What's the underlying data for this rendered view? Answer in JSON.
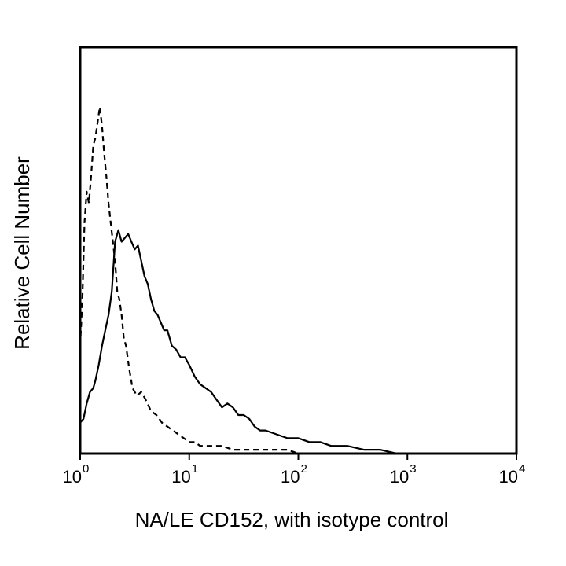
{
  "chart_data": {
    "type": "line",
    "title": "",
    "xlabel": "NA/LE CD152, with isotype control",
    "ylabel": "Relative Cell Number",
    "x_scale": "log10",
    "xlim_exponent": [
      0,
      4
    ],
    "ylim": [
      0,
      100
    ],
    "y_ticks_shown": false,
    "grid": false,
    "legend": "none",
    "x_ticks": [
      {
        "base": "10",
        "exp": "0",
        "value": 1
      },
      {
        "base": "10",
        "exp": "1",
        "value": 10
      },
      {
        "base": "10",
        "exp": "2",
        "value": 100
      },
      {
        "base": "10",
        "exp": "3",
        "value": 1000
      },
      {
        "base": "10",
        "exp": "4",
        "value": 10000
      }
    ],
    "series": [
      {
        "name": "NA/LE CD152",
        "style": "solid",
        "color": "#000000",
        "x_log": [
          0.0,
          0.03,
          0.06,
          0.09,
          0.12,
          0.14,
          0.17,
          0.2,
          0.23,
          0.26,
          0.29,
          0.32,
          0.35,
          0.38,
          0.41,
          0.44,
          0.47,
          0.5,
          0.53,
          0.56,
          0.59,
          0.62,
          0.65,
          0.68,
          0.71,
          0.74,
          0.77,
          0.8,
          0.84,
          0.88,
          0.92,
          0.96,
          1.0,
          1.05,
          1.1,
          1.15,
          1.2,
          1.25,
          1.3,
          1.35,
          1.4,
          1.45,
          1.5,
          1.55,
          1.6,
          1.65,
          1.7,
          1.8,
          1.9,
          2.0,
          2.1,
          2.2,
          2.3,
          2.45,
          2.6,
          2.75,
          2.9
        ],
        "y": [
          8,
          9,
          13,
          16,
          17,
          19,
          23,
          28,
          32,
          36,
          42,
          55,
          58,
          55,
          56,
          57,
          55,
          53,
          54,
          50,
          46,
          44,
          40,
          37,
          36,
          34,
          32,
          32,
          28,
          27,
          25,
          25,
          23,
          20,
          18,
          17,
          16,
          14,
          12,
          13,
          12,
          10,
          10,
          9,
          7,
          6,
          6,
          5,
          4,
          4,
          3,
          3,
          2,
          2,
          1,
          1,
          0
        ]
      },
      {
        "name": "Isotype control",
        "style": "dashed",
        "color": "#000000",
        "x_log": [
          0.0,
          0.02,
          0.04,
          0.06,
          0.08,
          0.1,
          0.12,
          0.14,
          0.16,
          0.18,
          0.2,
          0.22,
          0.24,
          0.26,
          0.28,
          0.3,
          0.32,
          0.34,
          0.36,
          0.38,
          0.4,
          0.42,
          0.45,
          0.48,
          0.52,
          0.56,
          0.6,
          0.65,
          0.7,
          0.75,
          0.8,
          0.85,
          0.9,
          0.95,
          1.0,
          1.05,
          1.1,
          1.2,
          1.3,
          1.4,
          1.5,
          1.6,
          1.7,
          1.8,
          1.9,
          2.0,
          2.1,
          2.2
        ],
        "y": [
          28,
          40,
          60,
          68,
          65,
          72,
          80,
          82,
          86,
          90,
          85,
          78,
          72,
          65,
          60,
          55,
          50,
          42,
          40,
          36,
          30,
          28,
          22,
          17,
          15,
          16,
          14,
          11,
          10,
          8,
          7,
          6,
          5,
          4,
          3,
          3,
          2,
          2,
          2,
          1,
          1,
          1,
          1,
          1,
          1,
          0,
          0,
          0
        ]
      }
    ]
  }
}
